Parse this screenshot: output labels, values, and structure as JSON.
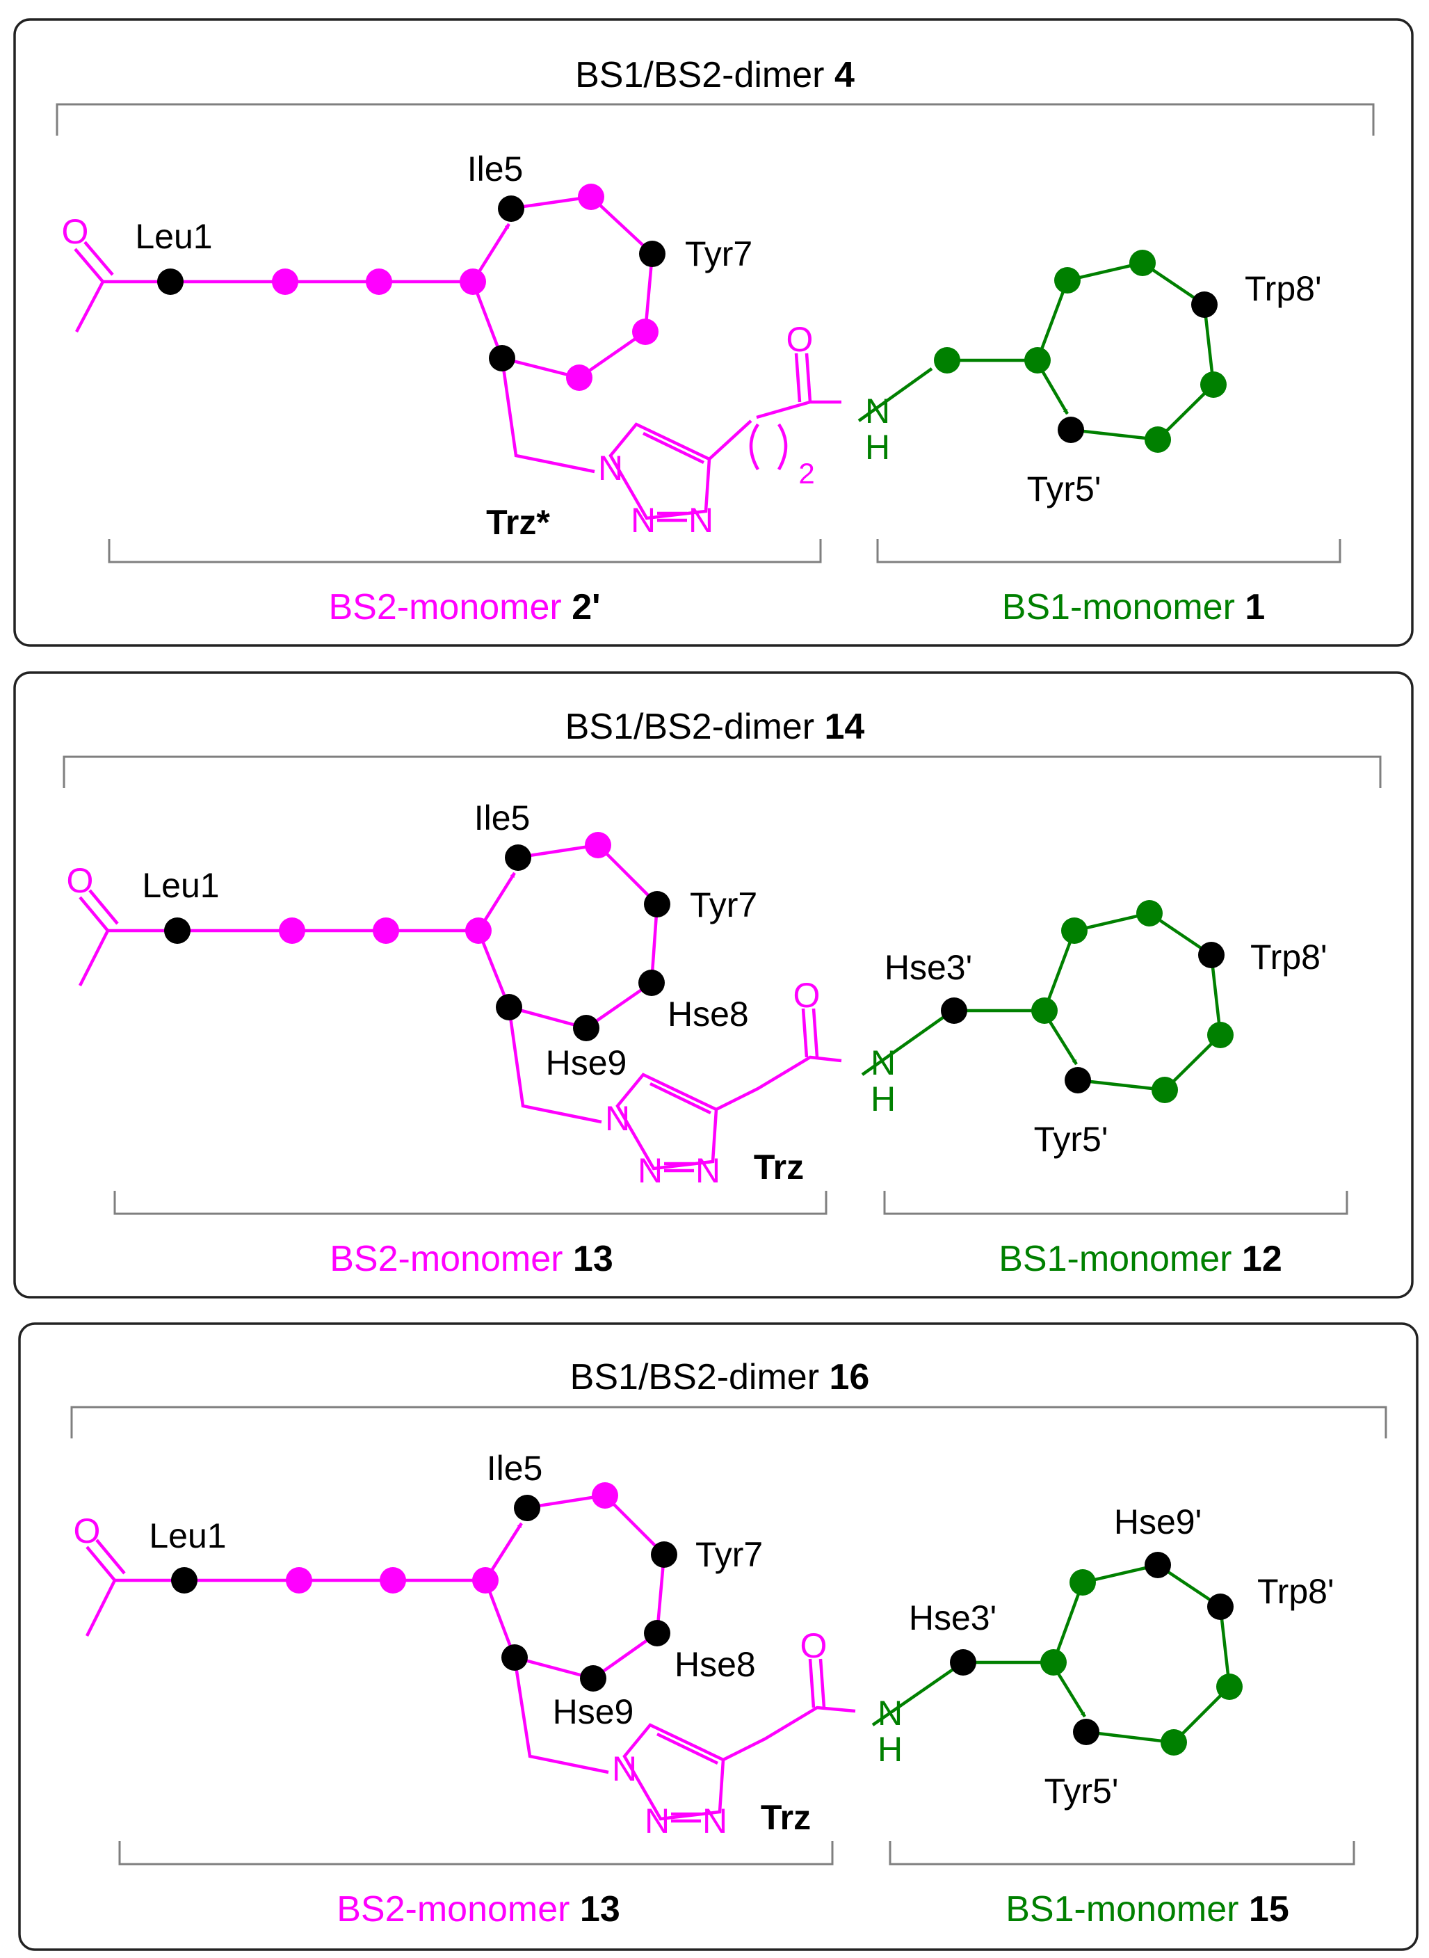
{
  "colors": {
    "bs2": "#ff00ff",
    "bs1": "#008000",
    "residue_dark": "#000000",
    "frame": "#222222",
    "bracket": "#7f7f7f"
  },
  "panels": [
    {
      "dimer_title": "BS1/BS2-dimer ",
      "dimer_number": "4",
      "linker_index": "2",
      "triazole_label": "Trz*",
      "bs2_name": "BS2-monomer ",
      "bs2_number": "2'",
      "bs1_name": "BS1-monomer ",
      "bs1_number": "1",
      "labels": {
        "leu1": "Leu1",
        "ile5": "Ile5",
        "tyr7": "Tyr7",
        "trp8p": "Trp8'",
        "tyr5p": "Tyr5'"
      }
    },
    {
      "dimer_title": "BS1/BS2-dimer ",
      "dimer_number": "14",
      "triazole_label": "Trz",
      "bs2_name": "BS2-monomer ",
      "bs2_number": "13",
      "bs1_name": "BS1-monomer ",
      "bs1_number": "12",
      "labels": {
        "leu1": "Leu1",
        "ile5": "Ile5",
        "tyr7": "Tyr7",
        "hse8": "Hse8",
        "hse9": "Hse9",
        "hse3p": "Hse3'",
        "trp8p": "Trp8'",
        "tyr5p": "Tyr5'"
      }
    },
    {
      "dimer_title": "BS1/BS2-dimer ",
      "dimer_number": "16",
      "triazole_label": "Trz",
      "bs2_name": "BS2-monomer ",
      "bs2_number": "13",
      "bs1_name": "BS1-monomer ",
      "bs1_number": "15",
      "labels": {
        "leu1": "Leu1",
        "ile5": "Ile5",
        "tyr7": "Tyr7",
        "hse8": "Hse8",
        "hse9": "Hse9",
        "hse3p": "Hse3'",
        "hse9p": "Hse9'",
        "trp8p": "Trp8'",
        "tyr5p": "Tyr5'"
      }
    }
  ],
  "atoms": {
    "O": "O",
    "N": "N",
    "H": "H"
  }
}
